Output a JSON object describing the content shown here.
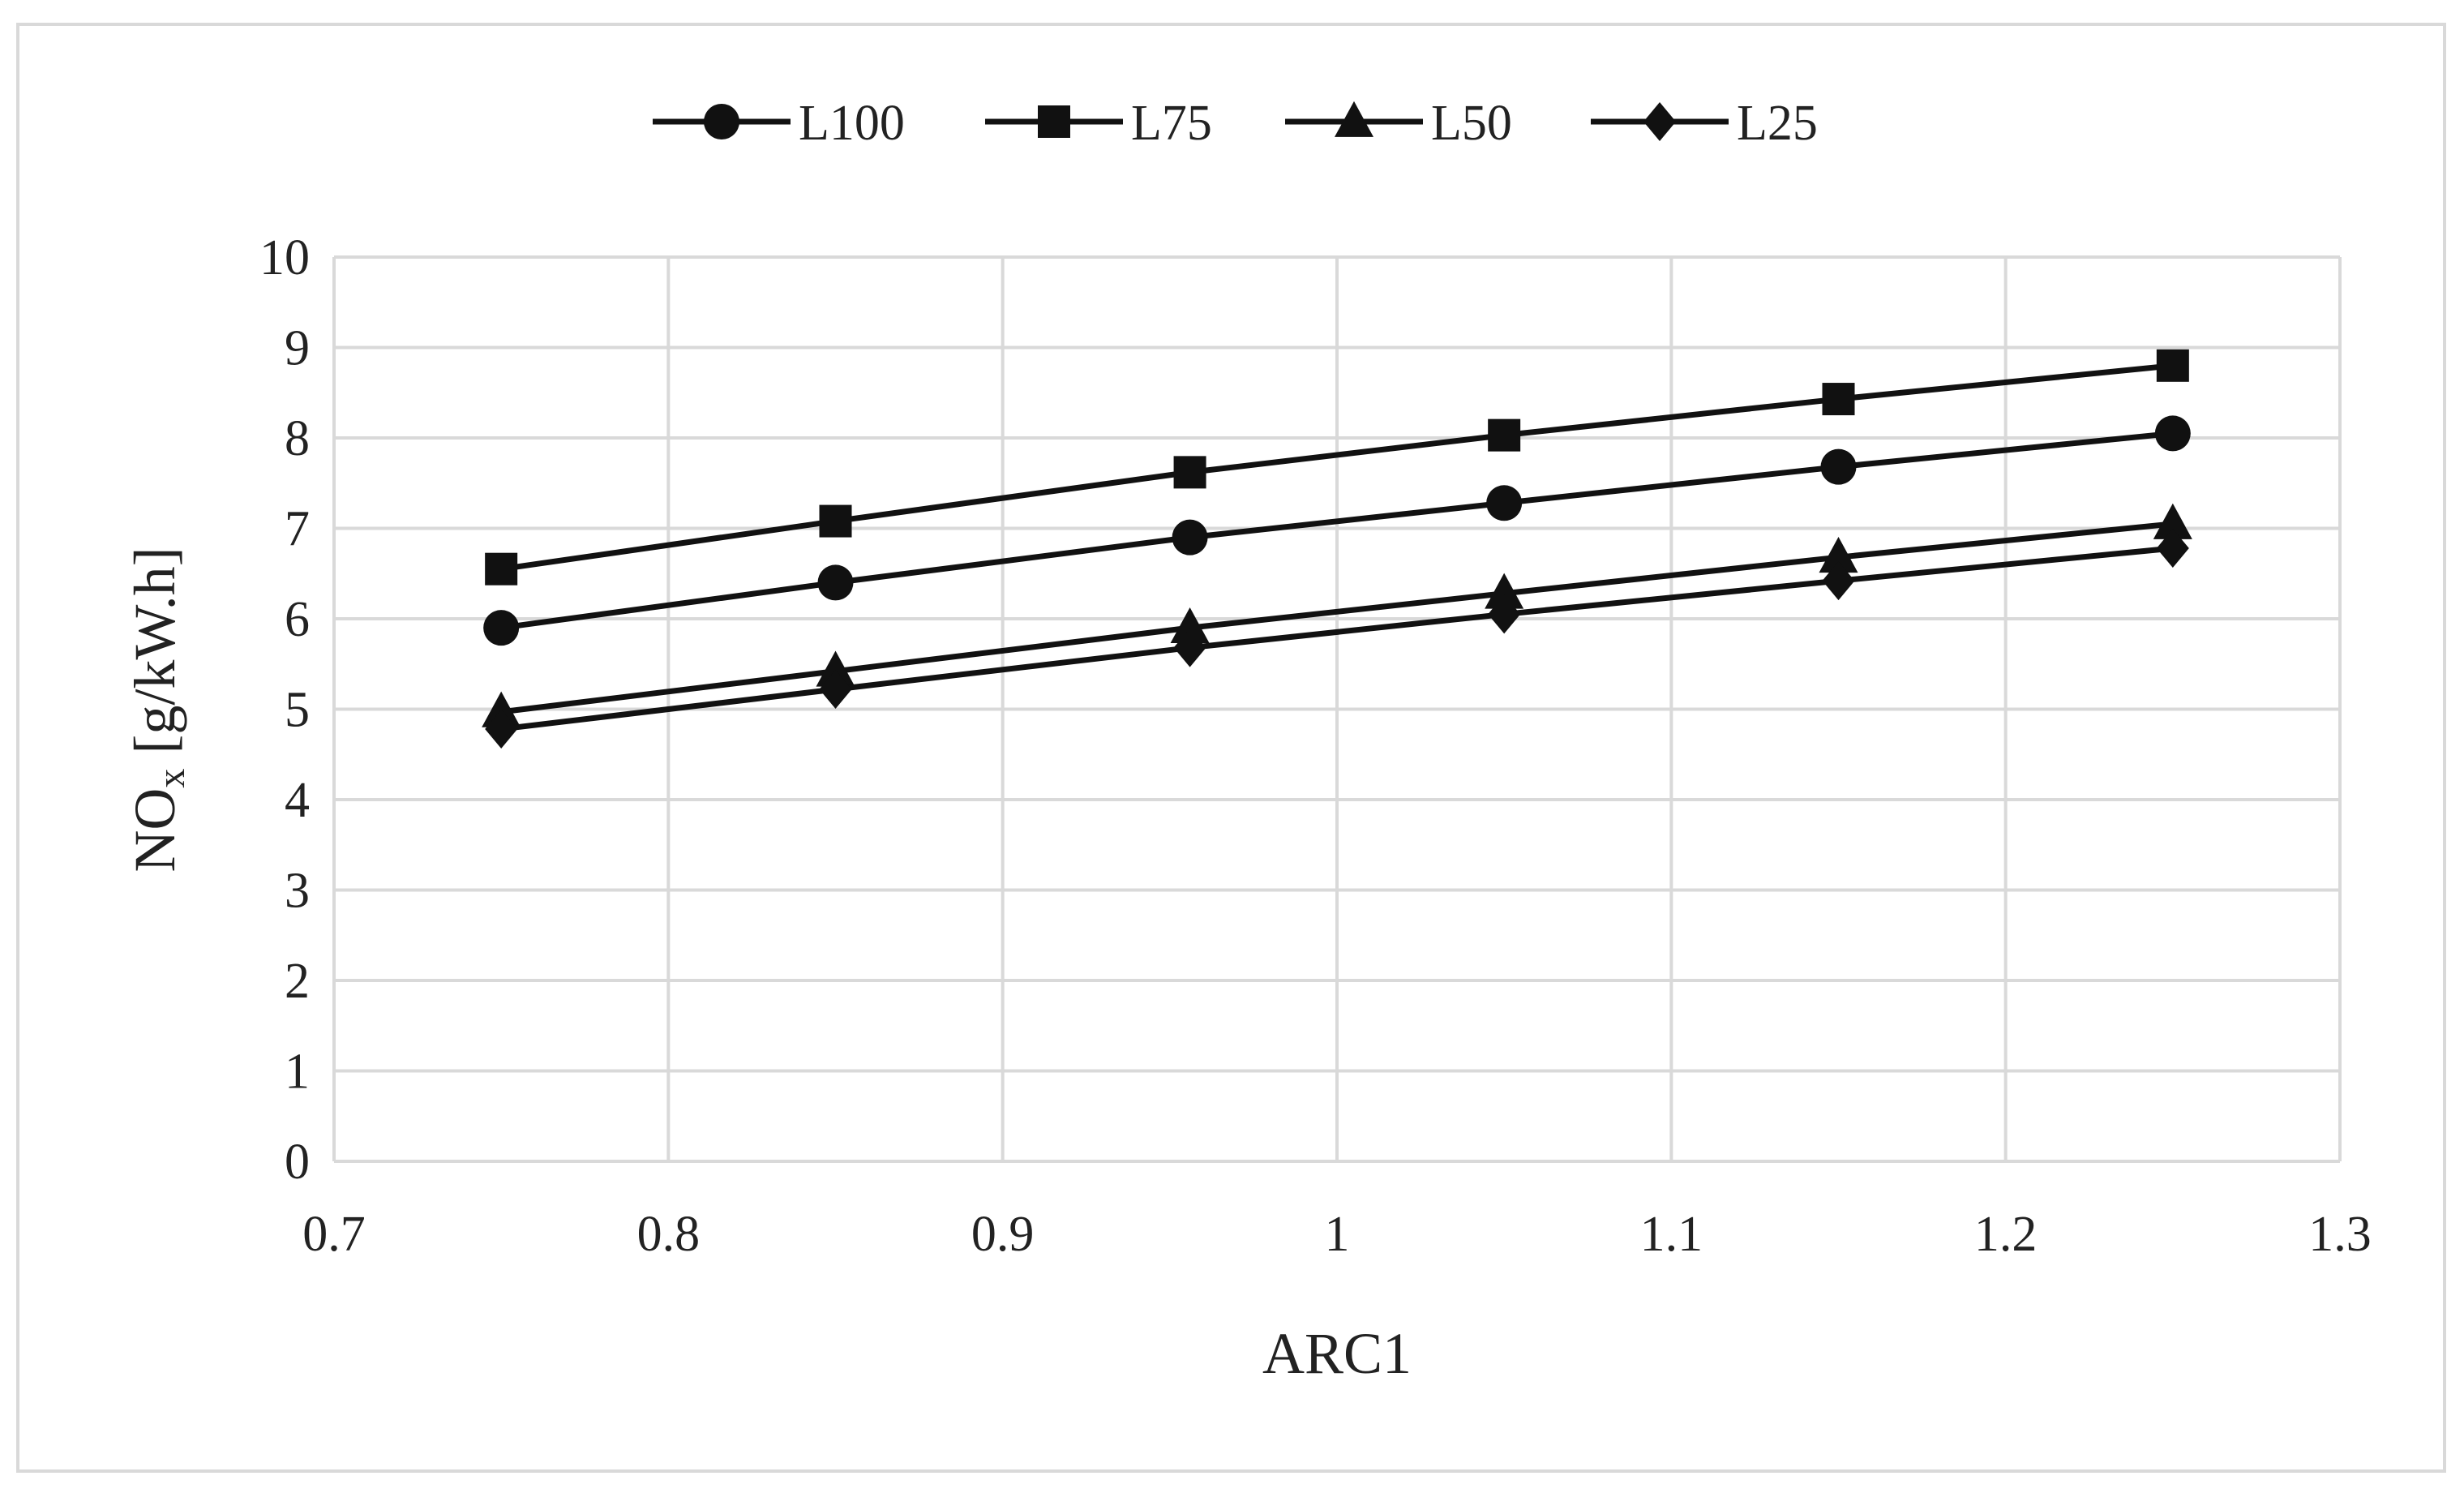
{
  "chart_data": {
    "type": "line",
    "title": "",
    "xlabel": "ARC1",
    "ylabel_main": "NO",
    "ylabel_sub": "x",
    "ylabel_rest": " [g/kW.h]",
    "xlim": [
      0.7,
      1.3
    ],
    "ylim": [
      0,
      10
    ],
    "x_ticks": [
      "0.7",
      "0.8",
      "0.9",
      "1",
      "1.1",
      "1.2",
      "1.3"
    ],
    "y_ticks": [
      "0",
      "1",
      "2",
      "3",
      "4",
      "5",
      "6",
      "7",
      "8",
      "9",
      "10"
    ],
    "grid": true,
    "legend_position": "top",
    "x": [
      0.75,
      0.85,
      0.956,
      1.05,
      1.15,
      1.25
    ],
    "series": [
      {
        "name": "L100",
        "marker": "circle",
        "values": [
          5.9,
          6.4,
          6.9,
          7.28,
          7.68,
          8.05
        ]
      },
      {
        "name": "L75",
        "marker": "square",
        "values": [
          6.55,
          7.08,
          7.62,
          8.03,
          8.43,
          8.8
        ]
      },
      {
        "name": "L50",
        "marker": "triangle",
        "values": [
          4.97,
          5.42,
          5.9,
          6.28,
          6.68,
          7.05
        ]
      },
      {
        "name": "L25",
        "marker": "diamond",
        "values": [
          4.78,
          5.22,
          5.68,
          6.05,
          6.42,
          6.78
        ]
      }
    ],
    "line_color": "#111111",
    "grid_color": "#d9d9d9"
  }
}
